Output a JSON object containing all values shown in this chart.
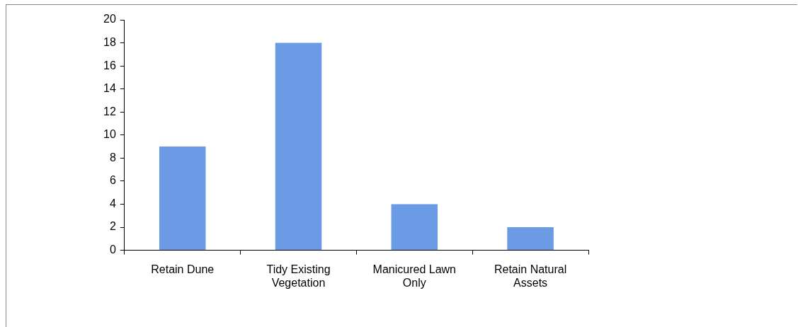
{
  "chart_data": {
    "type": "bar",
    "categories": [
      "Retain Dune",
      "Tidy Existing Vegetation",
      "Manicured Lawn Only",
      "Retain Natural Assets"
    ],
    "values": [
      9,
      18,
      4,
      2
    ],
    "color": "#6b9be4",
    "ylim": [
      0,
      20
    ],
    "yticks": [
      0,
      2,
      4,
      6,
      8,
      10,
      12,
      14,
      16,
      18,
      20
    ],
    "grid": false,
    "legend": false
  }
}
